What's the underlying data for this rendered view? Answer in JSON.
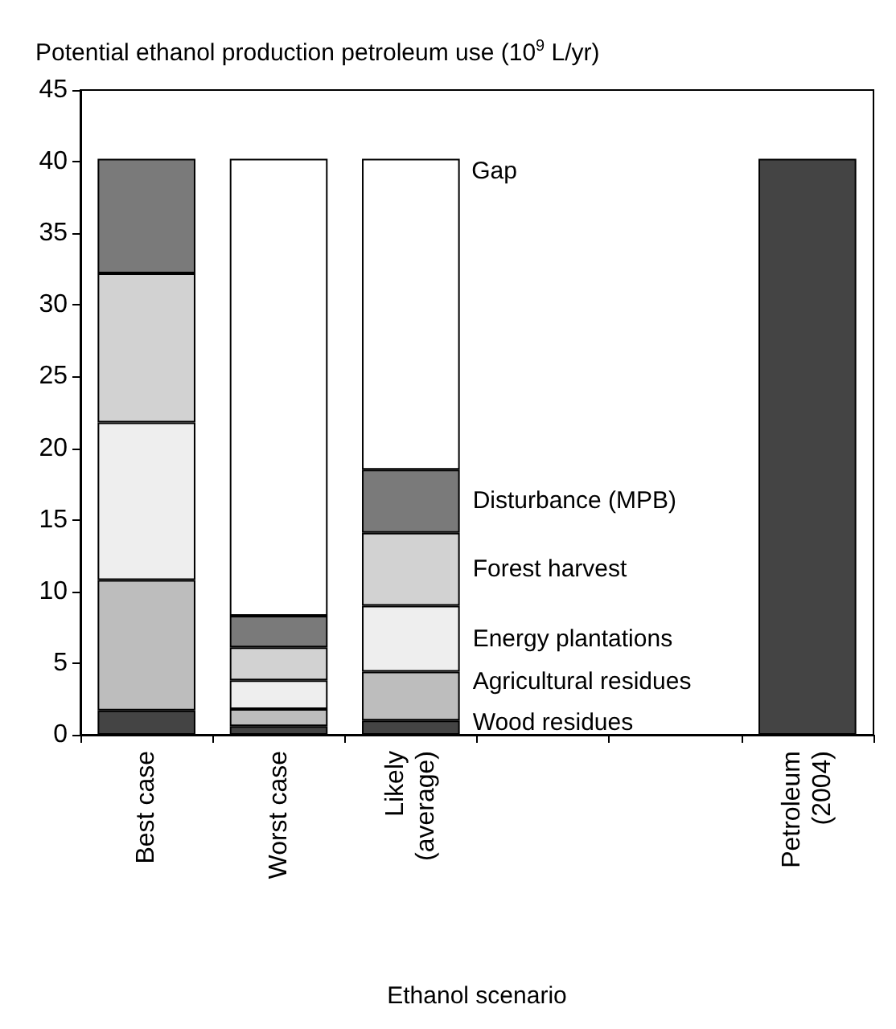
{
  "chart_data": {
    "type": "bar",
    "stacked": true,
    "ylabel": "Potential ethanol production petroleum use (10$^{9}$ L/yr)",
    "xlabel": "Ethanol scenario",
    "categories": [
      "Best case",
      "Worst case",
      "Likely\n(average)",
      null,
      null,
      "Petroleum\n(2004)"
    ],
    "series": [
      {
        "name": "Wood residues",
        "color": "#444444",
        "values": [
          1.7,
          0.6,
          1.0,
          null,
          null,
          null
        ]
      },
      {
        "name": "Agricultural residues",
        "color": "#bdbdbd",
        "values": [
          9.1,
          1.2,
          3.4,
          null,
          null,
          null
        ]
      },
      {
        "name": "Energy plantations",
        "color": "#eeeeee",
        "values": [
          11.0,
          2.0,
          4.6,
          null,
          null,
          null
        ]
      },
      {
        "name": "Forest harvest",
        "color": "#d2d2d2",
        "values": [
          10.4,
          2.3,
          5.1,
          null,
          null,
          null
        ]
      },
      {
        "name": "Disturbance (MPB)",
        "color": "#7a7a7a",
        "values": [
          8.0,
          2.2,
          4.4,
          null,
          null,
          null
        ]
      },
      {
        "name": "Gap",
        "color": "#ffffff",
        "values": [
          null,
          31.9,
          21.7,
          null,
          null,
          null
        ]
      },
      {
        "color": "#444444",
        "values": [
          null,
          null,
          null,
          null,
          null,
          40.2
        ]
      }
    ],
    "ylim": [
      0,
      45
    ],
    "yticks": [
      0,
      5,
      10,
      15,
      20,
      25,
      30,
      35,
      40,
      45
    ],
    "grid": false
  }
}
